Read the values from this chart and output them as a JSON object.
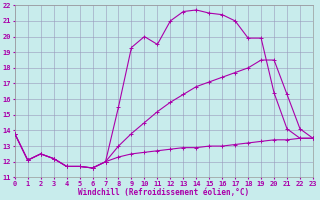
{
  "xlabel": "Windchill (Refroidissement éolien,°C)",
  "background_color": "#c8ecec",
  "line_color": "#aa00aa",
  "xlim": [
    0,
    23
  ],
  "ylim": [
    11,
    22
  ],
  "xticks": [
    0,
    1,
    2,
    3,
    4,
    5,
    6,
    7,
    8,
    9,
    10,
    11,
    12,
    13,
    14,
    15,
    16,
    17,
    18,
    19,
    20,
    21,
    22,
    23
  ],
  "yticks": [
    11,
    12,
    13,
    14,
    15,
    16,
    17,
    18,
    19,
    20,
    21,
    22
  ],
  "series1_x": [
    0,
    1,
    2,
    3,
    4,
    5,
    6,
    7,
    8,
    9,
    10,
    11,
    12,
    13,
    14,
    15,
    16,
    17,
    18,
    19,
    20,
    21,
    22,
    23
  ],
  "series1_y": [
    13.8,
    12.1,
    12.5,
    12.2,
    11.7,
    11.7,
    11.6,
    12.0,
    15.5,
    19.3,
    20.0,
    19.5,
    21.0,
    21.6,
    21.7,
    21.5,
    21.4,
    21.0,
    19.9,
    19.9,
    16.4,
    14.1,
    13.5,
    13.5
  ],
  "series2_x": [
    0,
    1,
    2,
    3,
    4,
    5,
    6,
    7,
    8,
    9,
    10,
    11,
    12,
    13,
    14,
    15,
    16,
    17,
    18,
    19,
    20,
    21,
    22,
    23
  ],
  "series2_y": [
    13.8,
    12.1,
    12.5,
    12.2,
    11.7,
    11.7,
    11.6,
    12.0,
    13.0,
    13.8,
    14.5,
    15.2,
    15.8,
    16.3,
    16.8,
    17.1,
    17.4,
    17.7,
    18.0,
    18.5,
    18.5,
    16.3,
    14.1,
    13.5
  ],
  "series3_x": [
    0,
    1,
    2,
    3,
    4,
    5,
    6,
    7,
    8,
    9,
    10,
    11,
    12,
    13,
    14,
    15,
    16,
    17,
    18,
    19,
    20,
    21,
    22,
    23
  ],
  "series3_y": [
    13.8,
    12.1,
    12.5,
    12.2,
    11.7,
    11.7,
    11.6,
    12.0,
    12.3,
    12.5,
    12.6,
    12.7,
    12.8,
    12.9,
    12.9,
    13.0,
    13.0,
    13.1,
    13.2,
    13.3,
    13.4,
    13.4,
    13.5,
    13.5
  ],
  "markersize": 2.5,
  "linewidth": 0.8
}
